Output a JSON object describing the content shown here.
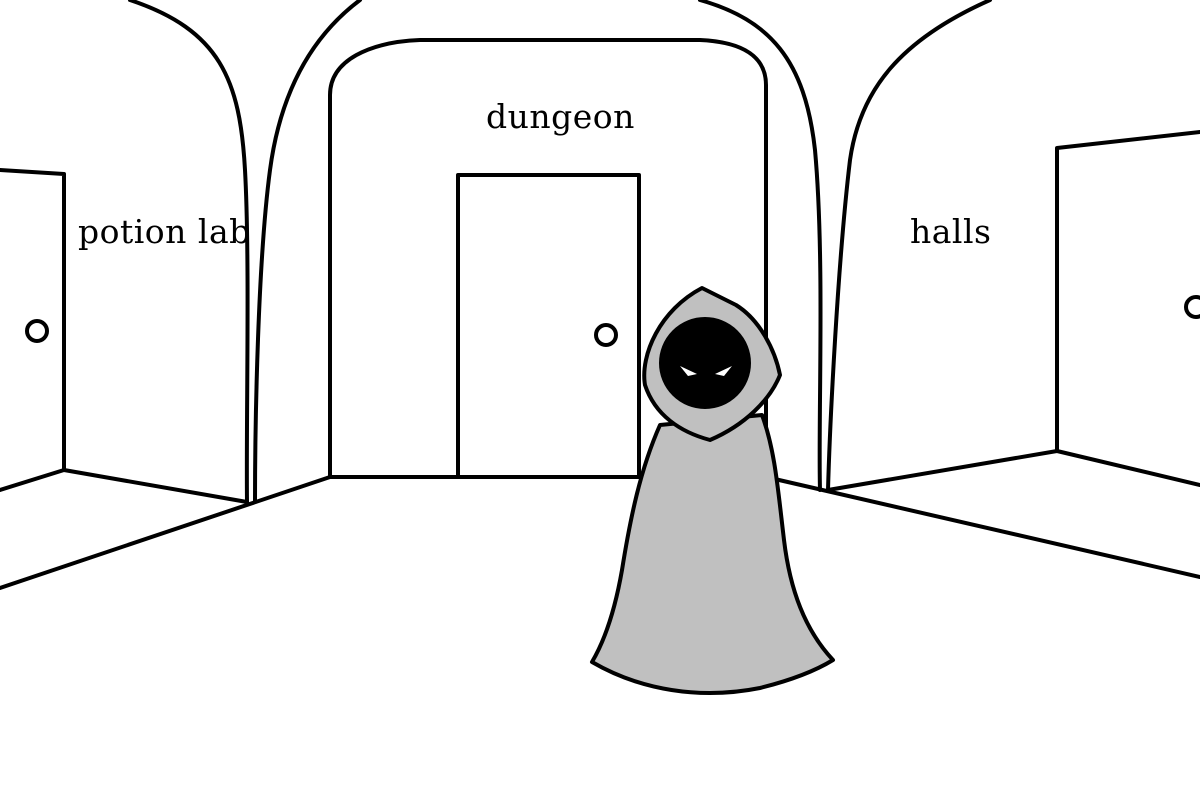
{
  "doors": {
    "left": {
      "label": "potion lab"
    },
    "center": {
      "label": "dungeon"
    },
    "right": {
      "label": "halls"
    }
  },
  "character": {
    "robe_color": "#c0c0c0",
    "face_color": "#000000",
    "eye_color": "#ffffff"
  },
  "colors": {
    "line": "#000000",
    "background": "#ffffff"
  }
}
